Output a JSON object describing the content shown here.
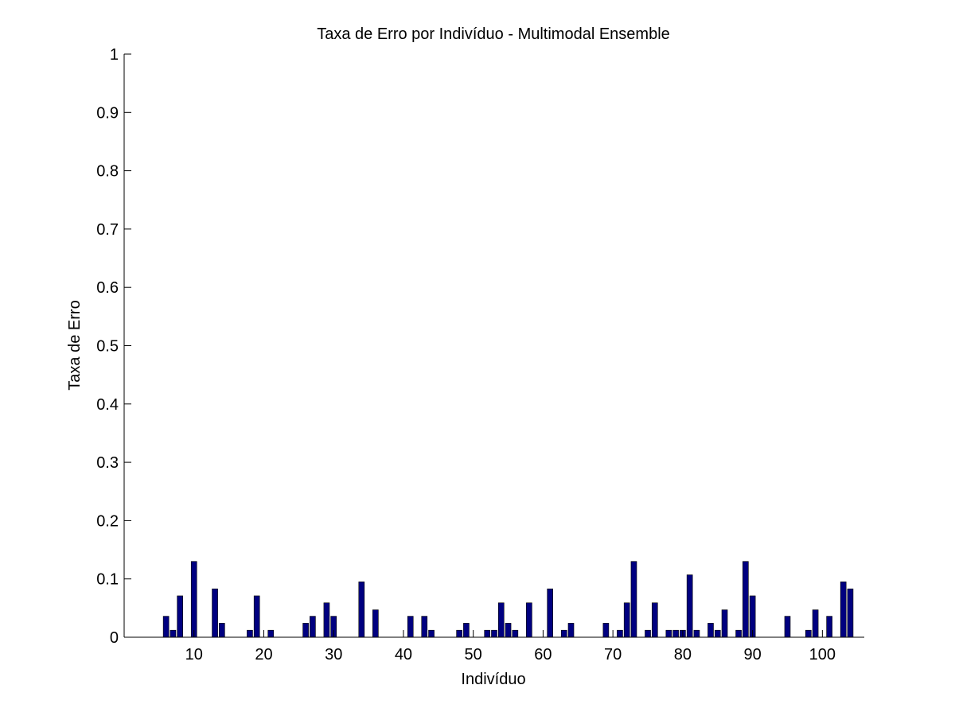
{
  "chart_data": {
    "type": "bar",
    "title": "Taxa de Erro por Indivíduo - Multimodal Ensemble",
    "xlabel": "Indivíduo",
    "ylabel": "Taxa de Erro",
    "xlim": [
      0,
      106
    ],
    "ylim": [
      0,
      1
    ],
    "x_ticks": [
      10,
      20,
      30,
      40,
      50,
      60,
      70,
      80,
      90,
      100
    ],
    "y_ticks": [
      0,
      0.1,
      0.2,
      0.3,
      0.4,
      0.5,
      0.6,
      0.7,
      0.8,
      0.9,
      1
    ],
    "y_tick_labels": [
      "0",
      "0.1",
      "0.2",
      "0.3",
      "0.4",
      "0.5",
      "0.6",
      "0.7",
      "0.8",
      "0.9",
      "1"
    ],
    "grid": false,
    "bar_color": "#000080",
    "bar_edge_color": "#000000",
    "series": [
      {
        "name": "Taxa de Erro",
        "x": [
          6,
          7,
          8,
          10,
          13,
          14,
          18,
          19,
          21,
          26,
          27,
          29,
          30,
          34,
          36,
          41,
          43,
          44,
          48,
          49,
          52,
          53,
          54,
          55,
          56,
          58,
          61,
          63,
          64,
          69,
          71,
          72,
          73,
          75,
          76,
          78,
          79,
          80,
          81,
          82,
          84,
          85,
          86,
          88,
          89,
          90,
          95,
          98,
          99,
          101,
          103,
          104
        ],
        "values": [
          0.036,
          0.012,
          0.071,
          0.13,
          0.083,
          0.024,
          0.012,
          0.071,
          0.012,
          0.024,
          0.036,
          0.059,
          0.036,
          0.095,
          0.047,
          0.036,
          0.036,
          0.012,
          0.012,
          0.024,
          0.012,
          0.012,
          0.059,
          0.024,
          0.012,
          0.059,
          0.083,
          0.012,
          0.024,
          0.024,
          0.012,
          0.059,
          0.13,
          0.012,
          0.059,
          0.012,
          0.012,
          0.012,
          0.107,
          0.012,
          0.024,
          0.012,
          0.047,
          0.012,
          0.13,
          0.071,
          0.036,
          0.012,
          0.047,
          0.036,
          0.095,
          0.083
        ]
      }
    ]
  }
}
